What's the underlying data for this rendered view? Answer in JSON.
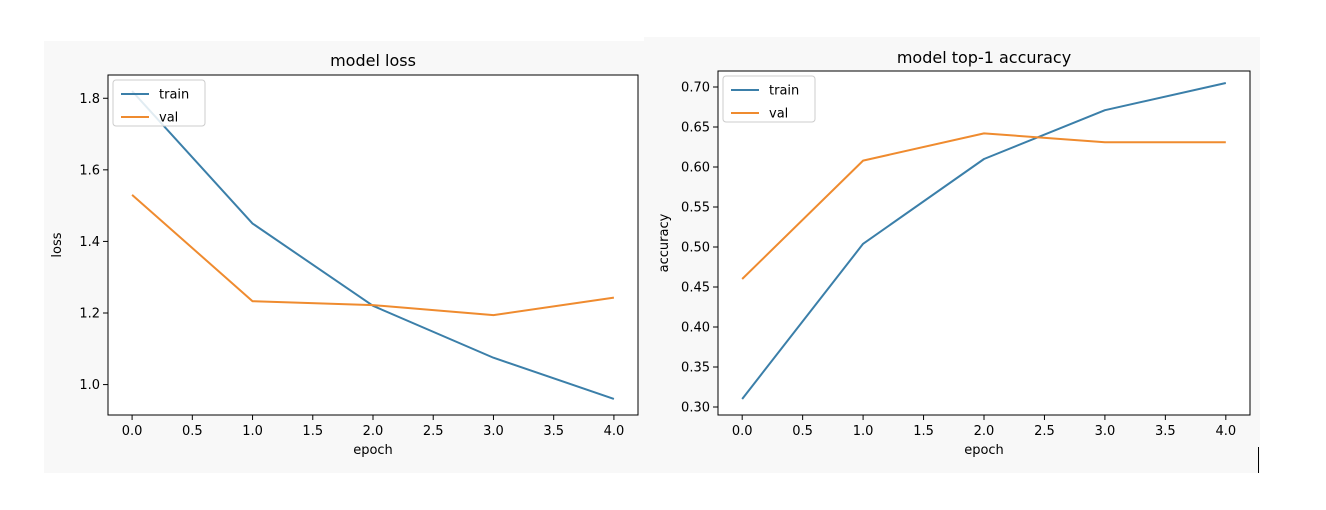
{
  "colors": {
    "train": "#3b7fa9",
    "val": "#ef8b2f",
    "panel_bg": "#f8f8f8"
  },
  "chart_data": [
    {
      "type": "line",
      "title": "model loss",
      "xlabel": "epoch",
      "ylabel": "loss",
      "x": [
        0,
        1,
        2,
        3,
        4
      ],
      "xlim": [
        -0.2,
        4.2
      ],
      "ylim": [
        0.915,
        1.865
      ],
      "xticks": [
        0.0,
        0.5,
        1.0,
        1.5,
        2.0,
        2.5,
        3.0,
        3.5,
        4.0
      ],
      "xtick_labels": [
        "0.0",
        "0.5",
        "1.0",
        "1.5",
        "2.0",
        "2.5",
        "3.0",
        "3.5",
        "4.0"
      ],
      "yticks": [
        1.0,
        1.2,
        1.4,
        1.6,
        1.8
      ],
      "ytick_labels": [
        "1.0",
        "1.2",
        "1.4",
        "1.6",
        "1.8"
      ],
      "grid": false,
      "legend_position": "top-left",
      "series": [
        {
          "name": "train",
          "values": [
            1.82,
            1.45,
            1.22,
            1.075,
            0.96
          ]
        },
        {
          "name": "val",
          "values": [
            1.53,
            1.233,
            1.222,
            1.194,
            1.243
          ]
        }
      ]
    },
    {
      "type": "line",
      "title": "model top-1 accuracy",
      "xlabel": "epoch",
      "ylabel": "accuracy",
      "x": [
        0,
        1,
        2,
        3,
        4
      ],
      "xlim": [
        -0.2,
        4.2
      ],
      "ylim": [
        0.29,
        0.72
      ],
      "xticks": [
        0.0,
        0.5,
        1.0,
        1.5,
        2.0,
        2.5,
        3.0,
        3.5,
        4.0
      ],
      "xtick_labels": [
        "0.0",
        "0.5",
        "1.0",
        "1.5",
        "2.0",
        "2.5",
        "3.0",
        "3.5",
        "4.0"
      ],
      "yticks": [
        0.3,
        0.35,
        0.4,
        0.45,
        0.5,
        0.55,
        0.6,
        0.65,
        0.7
      ],
      "ytick_labels": [
        "0.30",
        "0.35",
        "0.40",
        "0.45",
        "0.50",
        "0.55",
        "0.60",
        "0.65",
        "0.70"
      ],
      "grid": false,
      "legend_position": "top-left",
      "series": [
        {
          "name": "train",
          "values": [
            0.31,
            0.504,
            0.61,
            0.671,
            0.705
          ]
        },
        {
          "name": "val",
          "values": [
            0.46,
            0.608,
            0.642,
            0.631,
            0.631
          ]
        }
      ]
    }
  ]
}
